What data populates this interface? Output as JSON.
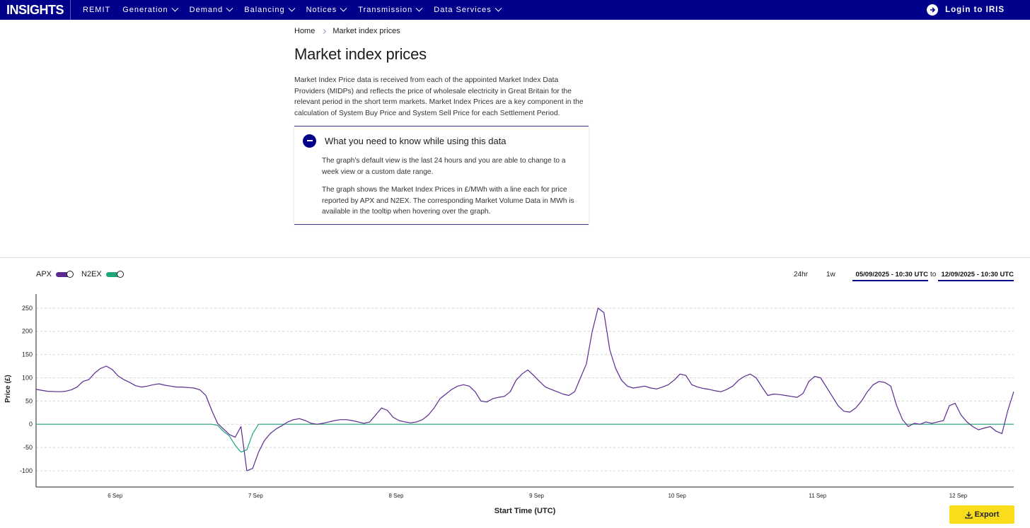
{
  "nav": {
    "logo": "INSIGHTS",
    "items": [
      "REMIT",
      "Generation",
      "Demand",
      "Balancing",
      "Notices",
      "Transmission",
      "Data Services"
    ],
    "login": "Login to IRIS"
  },
  "breadcrumb": {
    "home": "Home",
    "current": "Market index prices"
  },
  "page": {
    "title": "Market index prices",
    "intro": "Market Index Price data is received from each of the appointed Market Index Data Providers (MIDPs) and reflects the price of wholesale electricity in Great Britain for the relevant period in the short term markets. Market Index Prices are a key component in the calculation of System Buy Price and System Sell Price for each Settlement Period."
  },
  "accordion": {
    "title": "What you need to know while using this data",
    "para1": "The graph's default view is the last 24 hours and you are able to change to a week view or a custom date range.",
    "para2": "The graph shows the Market Index Prices in £/MWh with a line each for price reported by APX and N2EX. The corresponding Market Volume Data in MWh is available in the tooltip when hovering over the graph."
  },
  "controls": {
    "range_24h": "24hr",
    "range_1w": "1w",
    "date_from": "05/09/2025 - 10:30 UTC",
    "to_label": "to",
    "date_to": "12/09/2025 - 10:30 UTC",
    "export": "Export"
  },
  "colors": {
    "nav": "#00008b",
    "apx": "#5a2a91",
    "n2ex": "#1fa67a",
    "export": "#f9dc1c"
  },
  "chart_data": {
    "type": "line",
    "ylabel": "Price (£)",
    "xlabel": "Start Time (UTC)",
    "ylim": [
      -135,
      265
    ],
    "yticks": [
      250,
      200,
      150,
      100,
      50,
      0,
      -50,
      -100
    ],
    "xlim": [
      0,
      167
    ],
    "xticks": [
      {
        "x": 13.5,
        "label": "6 Sep"
      },
      {
        "x": 37.5,
        "label": "7 Sep"
      },
      {
        "x": 61.5,
        "label": "8 Sep"
      },
      {
        "x": 85.5,
        "label": "9 Sep"
      },
      {
        "x": 109.5,
        "label": "10 Sep"
      },
      {
        "x": 133.5,
        "label": "11 Sep"
      },
      {
        "x": 157.5,
        "label": "12 Sep"
      }
    ],
    "grid": true,
    "legend_position": "top-left",
    "series": [
      {
        "name": "APX",
        "points": [
          [
            0,
            75
          ],
          [
            2,
            71
          ],
          [
            4,
            70
          ],
          [
            5,
            71
          ],
          [
            6,
            74
          ],
          [
            7,
            80
          ],
          [
            8,
            92
          ],
          [
            9,
            96
          ],
          [
            10,
            110
          ],
          [
            11,
            120
          ],
          [
            12,
            125
          ],
          [
            13,
            118
          ],
          [
            14,
            104
          ],
          [
            15,
            96
          ],
          [
            16,
            90
          ],
          [
            17,
            83
          ],
          [
            18,
            80
          ],
          [
            19,
            82
          ],
          [
            20,
            85
          ],
          [
            21,
            87
          ],
          [
            22,
            84
          ],
          [
            23,
            82
          ],
          [
            24,
            80
          ],
          [
            25,
            80
          ],
          [
            26,
            79
          ],
          [
            27,
            78
          ],
          [
            28,
            74
          ],
          [
            29,
            62
          ],
          [
            30,
            30
          ],
          [
            31,
            2
          ],
          [
            32,
            -10
          ],
          [
            33,
            -22
          ],
          [
            34,
            -28
          ],
          [
            35,
            -5
          ],
          [
            36,
            -100
          ],
          [
            37,
            -95
          ],
          [
            38,
            -60
          ],
          [
            39,
            -35
          ],
          [
            40,
            -20
          ],
          [
            41,
            -10
          ],
          [
            42,
            -3
          ],
          [
            43,
            5
          ],
          [
            44,
            10
          ],
          [
            45,
            12
          ],
          [
            46,
            8
          ],
          [
            47,
            2
          ],
          [
            48,
            0
          ],
          [
            49,
            2
          ],
          [
            50,
            5
          ],
          [
            51,
            8
          ],
          [
            52,
            10
          ],
          [
            53,
            10
          ],
          [
            54,
            8
          ],
          [
            55,
            5
          ],
          [
            56,
            2
          ],
          [
            57,
            5
          ],
          [
            58,
            20
          ],
          [
            59,
            35
          ],
          [
            60,
            30
          ],
          [
            61,
            15
          ],
          [
            62,
            8
          ],
          [
            63,
            5
          ],
          [
            64,
            3
          ],
          [
            65,
            5
          ],
          [
            66,
            10
          ],
          [
            67,
            20
          ],
          [
            68,
            35
          ],
          [
            69,
            55
          ],
          [
            70,
            65
          ],
          [
            71,
            75
          ],
          [
            72,
            82
          ],
          [
            73,
            85
          ],
          [
            74,
            82
          ],
          [
            75,
            70
          ],
          [
            76,
            50
          ],
          [
            77,
            48
          ],
          [
            78,
            55
          ],
          [
            79,
            58
          ],
          [
            80,
            60
          ],
          [
            81,
            70
          ],
          [
            82,
            95
          ],
          [
            83,
            108
          ],
          [
            84,
            117
          ],
          [
            85,
            105
          ],
          [
            86,
            92
          ],
          [
            87,
            80
          ],
          [
            88,
            75
          ],
          [
            89,
            70
          ],
          [
            90,
            65
          ],
          [
            91,
            62
          ],
          [
            92,
            70
          ],
          [
            93,
            100
          ],
          [
            94,
            130
          ],
          [
            95,
            200
          ],
          [
            96,
            250
          ],
          [
            97,
            240
          ],
          [
            98,
            160
          ],
          [
            99,
            120
          ],
          [
            100,
            95
          ],
          [
            101,
            82
          ],
          [
            102,
            78
          ],
          [
            103,
            80
          ],
          [
            104,
            82
          ],
          [
            105,
            78
          ],
          [
            106,
            76
          ],
          [
            107,
            80
          ],
          [
            108,
            85
          ],
          [
            109,
            95
          ],
          [
            110,
            108
          ],
          [
            111,
            105
          ],
          [
            112,
            85
          ],
          [
            113,
            80
          ],
          [
            114,
            77
          ],
          [
            115,
            75
          ],
          [
            116,
            72
          ],
          [
            117,
            70
          ],
          [
            118,
            75
          ],
          [
            119,
            82
          ],
          [
            120,
            95
          ],
          [
            121,
            103
          ],
          [
            122,
            108
          ],
          [
            123,
            100
          ],
          [
            124,
            80
          ],
          [
            125,
            62
          ],
          [
            126,
            65
          ],
          [
            127,
            64
          ],
          [
            128,
            62
          ],
          [
            129,
            60
          ],
          [
            130,
            58
          ],
          [
            131,
            66
          ],
          [
            132,
            92
          ],
          [
            133,
            103
          ],
          [
            134,
            100
          ],
          [
            135,
            80
          ],
          [
            136,
            60
          ],
          [
            137,
            40
          ],
          [
            138,
            28
          ],
          [
            139,
            26
          ],
          [
            140,
            35
          ],
          [
            141,
            50
          ],
          [
            142,
            70
          ],
          [
            143,
            85
          ],
          [
            144,
            92
          ],
          [
            145,
            90
          ],
          [
            146,
            82
          ],
          [
            147,
            40
          ],
          [
            148,
            10
          ],
          [
            149,
            -5
          ],
          [
            150,
            2
          ],
          [
            151,
            0
          ],
          [
            152,
            5
          ],
          [
            153,
            2
          ],
          [
            154,
            5
          ],
          [
            155,
            8
          ],
          [
            156,
            40
          ],
          [
            157,
            45
          ],
          [
            158,
            20
          ],
          [
            159,
            5
          ],
          [
            160,
            -5
          ],
          [
            161,
            -12
          ],
          [
            162,
            -8
          ],
          [
            163,
            -5
          ],
          [
            164,
            -15
          ],
          [
            165,
            -20
          ],
          [
            166,
            30
          ],
          [
            167,
            70
          ]
        ]
      },
      {
        "name": "N2EX",
        "points": [
          [
            0,
            0
          ],
          [
            24,
            0
          ],
          [
            30,
            0
          ],
          [
            31,
            -2
          ],
          [
            32,
            -15
          ],
          [
            33,
            -25
          ],
          [
            34,
            -45
          ],
          [
            35,
            -60
          ],
          [
            36,
            -55
          ],
          [
            37,
            -20
          ],
          [
            38,
            0
          ],
          [
            167,
            0
          ]
        ]
      }
    ]
  }
}
